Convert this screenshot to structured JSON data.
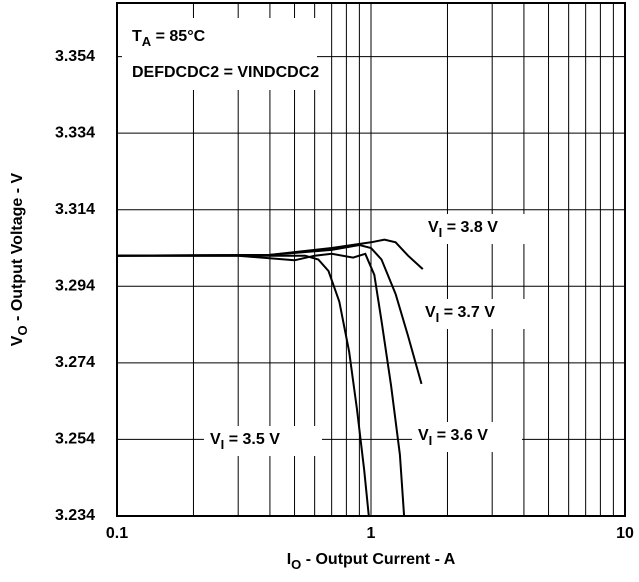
{
  "chart_data": {
    "type": "line",
    "title_lines": [
      "TA = 85°C",
      "DEFDCDC2 = VINDCDC2"
    ],
    "x_label": "IO -  Output Current - A",
    "y_label": "VO - Output Voltage - V",
    "xscale": "log",
    "xlim": [
      0.1,
      10
    ],
    "xticks": [
      0.1,
      1,
      10
    ],
    "xminorticks": [
      0.2,
      0.3,
      0.4,
      0.5,
      0.6,
      0.7,
      0.8,
      0.9,
      2,
      3,
      4,
      5,
      6,
      7,
      8,
      9
    ],
    "ylim": [
      3.234,
      3.368
    ],
    "yticks": [
      3.234,
      3.254,
      3.274,
      3.294,
      3.314,
      3.334,
      3.354
    ],
    "grid": true,
    "series": [
      {
        "name": "VI = 3.8 V",
        "color": "#000000",
        "x": [
          0.1,
          0.4,
          0.7,
          1.0,
          1.13,
          1.25,
          1.4,
          1.6
        ],
        "values": [
          3.302,
          3.3022,
          3.304,
          3.3055,
          3.3062,
          3.3055,
          3.302,
          3.2985
        ]
      },
      {
        "name": "VI = 3.7 V",
        "color": "#000000",
        "x": [
          0.1,
          0.4,
          0.7,
          0.9,
          1.0,
          1.1,
          1.25,
          1.4,
          1.58
        ],
        "values": [
          3.302,
          3.3022,
          3.3035,
          3.3048,
          3.304,
          3.301,
          3.292,
          3.281,
          3.2685
        ]
      },
      {
        "name": "VI = 3.6 V",
        "color": "#000000",
        "x": [
          0.1,
          0.3,
          0.5,
          0.6,
          0.7,
          0.85,
          0.95,
          1.03,
          1.1,
          1.2,
          1.3,
          1.35
        ],
        "values": [
          3.302,
          3.302,
          3.3008,
          3.302,
          3.3025,
          3.3015,
          3.3025,
          3.297,
          3.285,
          3.268,
          3.25,
          3.234
        ]
      },
      {
        "name": "VI = 3.5 V",
        "color": "#000000",
        "x": [
          0.1,
          0.2,
          0.4,
          0.55,
          0.62,
          0.68,
          0.75,
          0.82,
          0.88,
          0.94,
          0.98
        ],
        "values": [
          3.302,
          3.302,
          3.302,
          3.302,
          3.301,
          3.298,
          3.29,
          3.277,
          3.262,
          3.246,
          3.234
        ]
      }
    ]
  }
}
